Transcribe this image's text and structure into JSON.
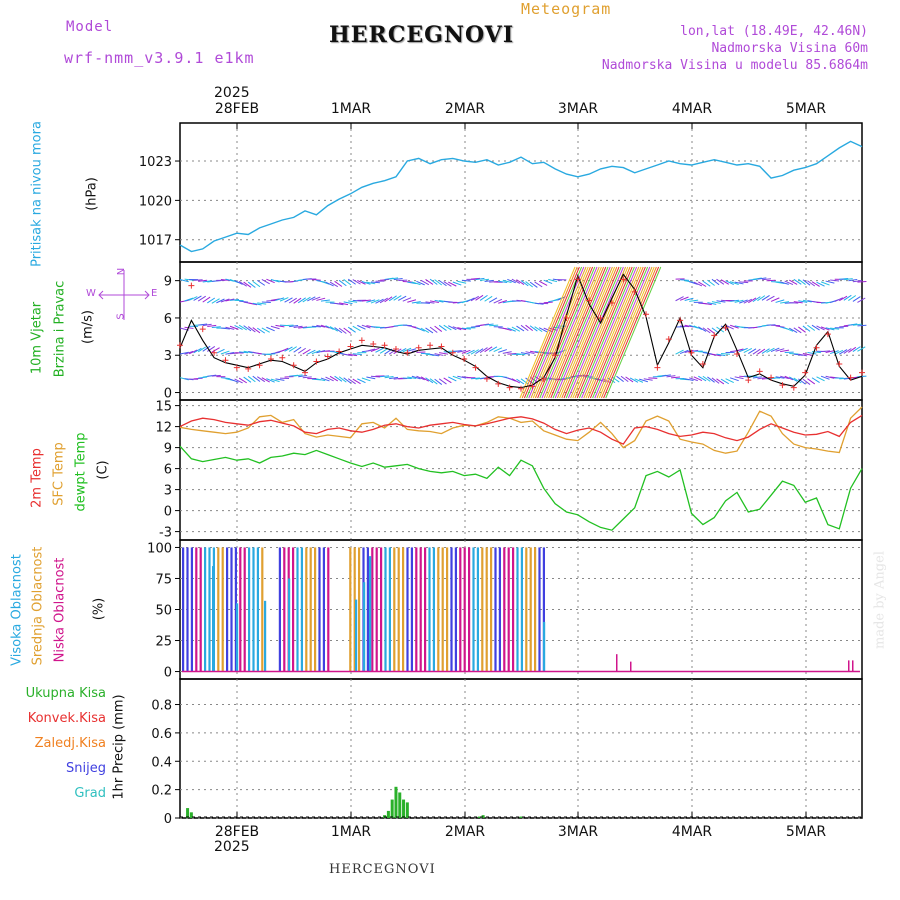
{
  "header": {
    "model_label": "Model",
    "model_name": "wrf-nmm_v3.9.1 e1km",
    "title": "HERCEGNOVI",
    "product": "Meteogram",
    "coords": "lon,lat (18.49E, 42.46N)",
    "elevation": "Nadmorska Visina 60m",
    "model_elevation": "Nadmorska Visina u modelu 85.6864m",
    "footer_title": "HERCEGNOVI",
    "watermark": "made by Angel"
  },
  "colors": {
    "pressure": "#29a9e0",
    "wind_label": "#22b022",
    "temp2m": "#e83030",
    "sfc": "#e0a030",
    "dew": "#22c022",
    "high_cloud": "#29a9e0",
    "mid_cloud": "#e0a030",
    "low_cloud": "#d0158c",
    "total_precip": "#2ab02a",
    "conv_precip": "#e83030",
    "frozen_precip": "#f08020",
    "snow": "#4040e0",
    "hail": "#30c0c0",
    "compass": "#b04ad8",
    "grid": "#888888"
  },
  "time_axis": {
    "year": "2025",
    "labels": [
      "28FEB",
      "1MAR",
      "2MAR",
      "3MAR",
      "4MAR",
      "5MAR"
    ]
  },
  "compass": {
    "n": "N",
    "s": "S",
    "e": "E",
    "w": "W"
  },
  "chart_data": [
    {
      "type": "line",
      "name": "pressure",
      "ylabel": [
        "Pritisak na nivou mora",
        "(hPa)"
      ],
      "yticks": [
        1017,
        1020,
        1023
      ],
      "ylim": [
        1015.3,
        1025.9
      ],
      "x_hours": [
        0,
        3,
        6,
        9,
        12,
        15,
        18,
        21,
        24,
        27,
        30,
        33,
        36,
        39,
        42,
        45,
        48,
        51,
        54,
        57,
        60,
        63,
        66,
        69,
        72,
        75,
        78,
        81,
        84,
        87,
        90,
        93,
        96,
        99,
        102,
        105,
        108,
        111,
        114,
        117,
        120,
        123,
        126,
        129,
        132,
        135,
        138,
        141,
        144,
        147,
        150,
        153,
        156,
        159,
        162,
        165,
        168,
        171,
        174,
        177,
        180
      ],
      "values": [
        1016.6,
        1016.1,
        1016.3,
        1016.9,
        1017.2,
        1017.5,
        1017.4,
        1017.9,
        1018.2,
        1018.5,
        1018.7,
        1019.2,
        1018.9,
        1019.6,
        1020.1,
        1020.5,
        1021.0,
        1021.3,
        1021.5,
        1021.8,
        1023.0,
        1023.2,
        1022.8,
        1023.1,
        1023.2,
        1023.0,
        1022.9,
        1023.1,
        1022.7,
        1022.9,
        1023.3,
        1022.8,
        1022.9,
        1022.4,
        1022.0,
        1021.8,
        1022.0,
        1022.4,
        1022.6,
        1022.5,
        1022.1,
        1022.4,
        1022.7,
        1023.0,
        1022.8,
        1022.7,
        1022.9,
        1023.1,
        1022.9,
        1022.7,
        1022.8,
        1022.6,
        1021.7,
        1021.9,
        1022.3,
        1022.5,
        1022.8,
        1023.4,
        1024.0,
        1024.5,
        1024.1
      ]
    },
    {
      "type": "line",
      "name": "wind",
      "ylabel": [
        "10m Vjetar",
        "Brzina i Pravac",
        "(m/s)"
      ],
      "yticks": [
        0,
        3,
        6,
        9
      ],
      "ylim": [
        -0.6,
        10.5
      ],
      "x_hours": [
        0,
        3,
        6,
        9,
        12,
        15,
        18,
        21,
        24,
        27,
        30,
        33,
        36,
        39,
        42,
        45,
        48,
        51,
        54,
        57,
        60,
        63,
        66,
        69,
        72,
        75,
        78,
        81,
        84,
        87,
        90,
        93,
        96,
        99,
        102,
        105,
        108,
        111,
        114,
        117,
        120,
        123,
        126,
        129,
        132,
        135,
        138,
        141,
        144,
        147,
        150,
        153,
        156,
        159,
        162,
        165,
        168,
        171,
        174,
        177,
        180
      ],
      "series": [
        {
          "values": [
            3.6,
            5.8,
            4.2,
            2.8,
            2.4,
            2.2,
            2.0,
            2.3,
            2.6,
            2.5,
            2.1,
            1.7,
            2.4,
            2.7,
            3.2,
            3.5,
            3.8,
            3.7,
            3.6,
            3.3,
            3.1,
            3.4,
            3.5,
            3.6,
            3.0,
            2.6,
            2.1,
            1.3,
            0.8,
            0.5,
            0.4,
            0.6,
            1.2,
            2.8,
            6.2,
            9.4,
            7.1,
            5.6,
            7.6,
            9.5,
            8.3,
            6.1,
            2.2,
            4.0,
            6.0,
            3.0,
            2.0,
            4.5,
            5.5,
            3.4,
            1.2,
            1.5,
            1.0,
            0.7,
            0.5,
            1.4,
            3.8,
            4.9,
            2.1,
            1.0,
            1.3
          ]
        },
        {
          "values": [
            3.8,
            8.6,
            5.1,
            3.2,
            2.6,
            2.0,
            1.9,
            2.2,
            2.7,
            2.8,
            2.2,
            1.6,
            2.5,
            2.9,
            3.3,
            3.7,
            4.2,
            3.9,
            3.8,
            3.5,
            3.2,
            3.6,
            3.8,
            3.7,
            3.2,
            2.7,
            2.0,
            1.1,
            0.7,
            0.4,
            0.3,
            0.5,
            1.1,
            3.0,
            6.0,
            9.1,
            7.4,
            6.0,
            7.2,
            9.1,
            8.1,
            6.3,
            2.0,
            4.3,
            5.8,
            3.2,
            2.3,
            4.6,
            5.2,
            3.1,
            1.0,
            1.7,
            1.2,
            0.6,
            0.4,
            1.6,
            3.6,
            4.7,
            2.3,
            1.2,
            1.6
          ]
        }
      ]
    },
    {
      "type": "line",
      "name": "temperature",
      "ylabel": [
        "2m Temp",
        "SFC Temp",
        "dewpt Temp",
        "(C)"
      ],
      "yticks": [
        -3,
        0,
        3,
        6,
        9,
        12,
        15
      ],
      "ylim": [
        -4.2,
        15.8
      ],
      "x_hours": [
        0,
        3,
        6,
        9,
        12,
        15,
        18,
        21,
        24,
        27,
        30,
        33,
        36,
        39,
        42,
        45,
        48,
        51,
        54,
        57,
        60,
        63,
        66,
        69,
        72,
        75,
        78,
        81,
        84,
        87,
        90,
        93,
        96,
        99,
        102,
        105,
        108,
        111,
        114,
        117,
        120,
        123,
        126,
        129,
        132,
        135,
        138,
        141,
        144,
        147,
        150,
        153,
        156,
        159,
        162,
        165,
        168,
        171,
        174,
        177,
        180
      ],
      "series": [
        {
          "name": "2m Temp",
          "values": [
            12.0,
            12.8,
            13.2,
            13.0,
            12.6,
            12.4,
            12.2,
            12.7,
            12.9,
            12.5,
            12.1,
            11.2,
            11.0,
            11.6,
            11.8,
            11.4,
            11.2,
            11.6,
            12.2,
            12.4,
            12.0,
            11.8,
            12.2,
            12.4,
            12.6,
            12.3,
            12.1,
            12.4,
            12.8,
            13.2,
            13.4,
            13.1,
            12.5,
            11.6,
            11.0,
            11.5,
            11.8,
            11.2,
            10.2,
            9.5,
            11.8,
            12.0,
            11.6,
            11.0,
            10.6,
            10.8,
            11.2,
            11.0,
            10.4,
            10.0,
            10.5,
            11.6,
            12.4,
            11.8,
            11.2,
            10.8,
            10.9,
            11.3,
            10.6,
            12.6,
            13.6
          ]
        },
        {
          "name": "SFC Temp",
          "values": [
            11.9,
            11.6,
            11.4,
            11.2,
            11.0,
            11.2,
            11.8,
            13.4,
            13.6,
            12.6,
            13.0,
            11.0,
            10.5,
            10.8,
            10.6,
            10.4,
            12.4,
            12.6,
            11.8,
            13.2,
            11.6,
            11.4,
            11.3,
            11.0,
            11.8,
            12.2,
            12.1,
            12.6,
            13.4,
            13.2,
            12.6,
            12.8,
            11.4,
            10.8,
            10.2,
            10.0,
            11.2,
            12.6,
            11.0,
            9.0,
            10.0,
            12.8,
            13.5,
            12.8,
            10.2,
            9.8,
            9.5,
            8.6,
            8.2,
            8.5,
            11.2,
            14.2,
            13.5,
            11.0,
            9.5,
            9.0,
            8.8,
            8.5,
            8.3,
            13.2,
            14.8
          ]
        },
        {
          "name": "dewpt Temp",
          "values": [
            9.2,
            7.4,
            7.0,
            7.3,
            7.6,
            7.2,
            7.4,
            6.8,
            7.6,
            7.8,
            8.2,
            8.0,
            8.6,
            8.0,
            7.4,
            6.8,
            6.3,
            6.8,
            6.2,
            6.4,
            6.6,
            6.0,
            5.6,
            5.4,
            5.6,
            5.0,
            5.2,
            4.6,
            6.2,
            5.0,
            7.2,
            6.4,
            3.2,
            1.0,
            -0.2,
            -0.6,
            -1.6,
            -2.4,
            -2.8,
            -1.2,
            0.4,
            5.0,
            5.6,
            4.8,
            5.8,
            -0.4,
            -2.0,
            -1.0,
            1.4,
            2.6,
            -0.2,
            0.2,
            2.2,
            4.2,
            3.6,
            1.2,
            1.8,
            -2.0,
            -2.6,
            3.2,
            6.0
          ]
        }
      ]
    },
    {
      "type": "bar",
      "name": "cloud",
      "ylabel": [
        "Visoka Oblacnost",
        "Srednja Oblacnost",
        "Niska Oblacnost",
        "(%)"
      ],
      "yticks": [
        0,
        25,
        50,
        75,
        100
      ],
      "ylim": [
        -6,
        106
      ]
    },
    {
      "type": "bar",
      "name": "precip",
      "ylabel": [
        "1hr Precip (mm)"
      ],
      "yticks": [
        0,
        0.2,
        0.4,
        0.6,
        0.8
      ],
      "yticklabels": [
        "0",
        "0.2",
        "0.4",
        "0.6",
        "0.8"
      ],
      "ylim": [
        0,
        0.98
      ],
      "legend": [
        "Ukupna Kisa",
        "Konvek.Kisa",
        "Zaledj.Kisa",
        "Snijeg",
        "Grad"
      ],
      "x_hours": [
        2,
        3,
        54,
        55,
        56,
        57,
        58,
        59,
        60,
        79,
        80,
        90
      ],
      "values": [
        0.07,
        0.04,
        0.02,
        0.05,
        0.13,
        0.22,
        0.18,
        0.13,
        0.11,
        0.01,
        0.02,
        0.01
      ]
    }
  ]
}
